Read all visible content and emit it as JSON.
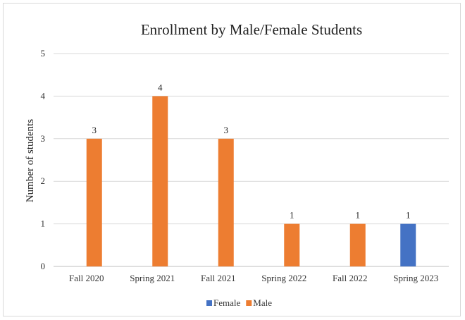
{
  "chart_data": {
    "type": "bar",
    "title": "Enrollment by Male/Female Students",
    "xlabel": "",
    "ylabel": "Number of students",
    "ylim": [
      0,
      5
    ],
    "yticks": [
      0,
      1,
      2,
      3,
      4,
      5
    ],
    "grid": true,
    "legend_position": "bottom",
    "categories": [
      "Fall 2020",
      "Spring 2021",
      "Fall 2021",
      "Spring 2022",
      "Fall 2022",
      "Spring 2023"
    ],
    "series": [
      {
        "name": "Female",
        "color": "#4472c4",
        "values": [
          0,
          0,
          0,
          0,
          0,
          1
        ]
      },
      {
        "name": "Male",
        "color": "#ed7d31",
        "values": [
          3,
          4,
          3,
          1,
          1,
          0
        ]
      }
    ]
  }
}
